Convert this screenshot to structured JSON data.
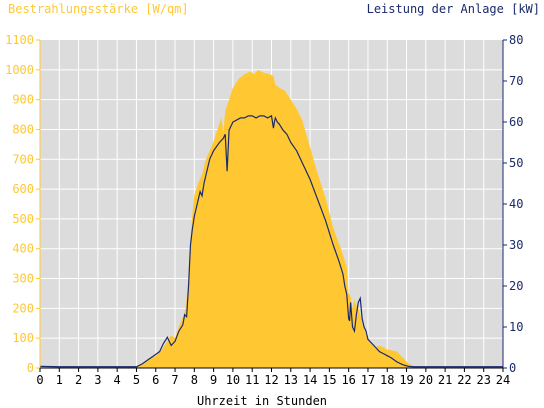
{
  "chart_data": {
    "type": "area",
    "title_left": "Bestrahlungsstärke [W/qm]",
    "title_right": "Leistung der Anlage [kW]",
    "xlabel": "Uhrzeit in Stunden",
    "x_ticks": [
      "0",
      "1",
      "2",
      "3",
      "4",
      "5",
      "6",
      "7",
      "8",
      "9",
      "10",
      "11",
      "12",
      "13",
      "14",
      "15",
      "16",
      "17",
      "18",
      "19",
      "20",
      "21",
      "22",
      "23",
      "24"
    ],
    "xlim": [
      0,
      24
    ],
    "y_left_ticks": [
      "0",
      "100",
      "200",
      "300",
      "400",
      "500",
      "600",
      "700",
      "800",
      "900",
      "1000",
      "1100"
    ],
    "y_left_lim": [
      0,
      1100
    ],
    "y_right_ticks": [
      "0",
      "10",
      "20",
      "30",
      "40",
      "50",
      "60",
      "70",
      "80"
    ],
    "y_right_lim": [
      0,
      80
    ],
    "grid": true,
    "colors": {
      "plot_bg": "#dcdcdc",
      "grid": "#ffffff",
      "irradiance_fill": "#ffc832",
      "power_line": "#1a2a6c",
      "left_axis_text": "#ffc832",
      "right_axis_text": "#1a2a6c",
      "x_axis_text": "#000000"
    },
    "series": [
      {
        "kind": "area",
        "axis": "left",
        "x": [
          0,
          4.8,
          5.2,
          5.5,
          5.8,
          6.0,
          6.3,
          6.6,
          6.8,
          7.0,
          7.2,
          7.4,
          7.55,
          7.7,
          7.8,
          7.9,
          8.0,
          8.2,
          8.4,
          8.6,
          8.8,
          9.0,
          9.2,
          9.4,
          9.5,
          9.6,
          9.7,
          9.8,
          10.0,
          10.3,
          10.6,
          10.9,
          11.1,
          11.3,
          11.6,
          11.9,
          12.1,
          12.2,
          12.4,
          12.7,
          13.0,
          13.3,
          13.6,
          14.0,
          14.4,
          14.8,
          15.2,
          15.6,
          15.8,
          15.9,
          16.0,
          16.1,
          16.2,
          16.3,
          16.4,
          16.5,
          16.6,
          16.7,
          16.8,
          16.9,
          17.0,
          17.2,
          17.4,
          17.6,
          17.8,
          18.0,
          18.2,
          18.5,
          18.8,
          19.1,
          19.4,
          19.7,
          20.0,
          24
        ],
        "values": [
          0,
          2,
          8,
          20,
          35,
          40,
          60,
          90,
          110,
          100,
          140,
          170,
          200,
          300,
          420,
          520,
          580,
          620,
          650,
          700,
          730,
          760,
          800,
          840,
          790,
          860,
          880,
          900,
          940,
          970,
          985,
          995,
          985,
          1000,
          990,
          985,
          980,
          950,
          940,
          930,
          900,
          870,
          830,
          740,
          650,
          570,
          470,
          400,
          360,
          340,
          250,
          240,
          200,
          230,
          210,
          200,
          180,
          150,
          130,
          115,
          100,
          80,
          70,
          75,
          70,
          62,
          60,
          55,
          35,
          15,
          6,
          2,
          0,
          0
        ]
      },
      {
        "kind": "line",
        "axis": "right",
        "x": [
          0,
          1,
          2,
          3,
          4,
          5.0,
          5.3,
          5.6,
          5.9,
          6.2,
          6.4,
          6.6,
          6.8,
          7.0,
          7.2,
          7.4,
          7.5,
          7.6,
          7.7,
          7.75,
          7.8,
          7.9,
          8.0,
          8.2,
          8.3,
          8.4,
          8.5,
          8.6,
          8.8,
          9.0,
          9.3,
          9.5,
          9.6,
          9.7,
          9.8,
          9.9,
          10.0,
          10.2,
          10.4,
          10.6,
          10.8,
          11.0,
          11.2,
          11.4,
          11.6,
          11.8,
          12.0,
          12.1,
          12.15,
          12.2,
          12.25,
          12.3,
          12.4,
          12.6,
          12.8,
          13.0,
          13.3,
          13.6,
          14.0,
          14.4,
          14.8,
          15.2,
          15.5,
          15.7,
          15.8,
          15.9,
          16.0,
          16.05,
          16.1,
          16.2,
          16.3,
          16.4,
          16.5,
          16.6,
          16.7,
          16.8,
          16.9,
          17.0,
          17.2,
          17.4,
          17.6,
          17.8,
          18.0,
          18.2,
          18.5,
          18.8,
          19.1,
          19.4,
          19.8,
          20.2,
          24
        ],
        "values": [
          0.4,
          0.3,
          0.3,
          0.3,
          0.3,
          0.3,
          1,
          2,
          3,
          4,
          6,
          7.5,
          5.5,
          6.5,
          9,
          10.5,
          13,
          12.5,
          20,
          25,
          30,
          34,
          37,
          41,
          43,
          42,
          45,
          47,
          51,
          53,
          55,
          56,
          57,
          48,
          58,
          59,
          60,
          60.5,
          61,
          61,
          61.5,
          61.5,
          61,
          61.5,
          61.5,
          61,
          61.5,
          58.5,
          60,
          61,
          60.5,
          60,
          59.5,
          58,
          57,
          55,
          53,
          50,
          46,
          41,
          36,
          30,
          26,
          23,
          20,
          18,
          12,
          11.5,
          16,
          10,
          9,
          13,
          16,
          17,
          12,
          10,
          9,
          7,
          6,
          5,
          4,
          3.5,
          3,
          2.5,
          1.5,
          0.8,
          0.4,
          0.3,
          0.3,
          0.3,
          0.3
        ]
      }
    ]
  }
}
